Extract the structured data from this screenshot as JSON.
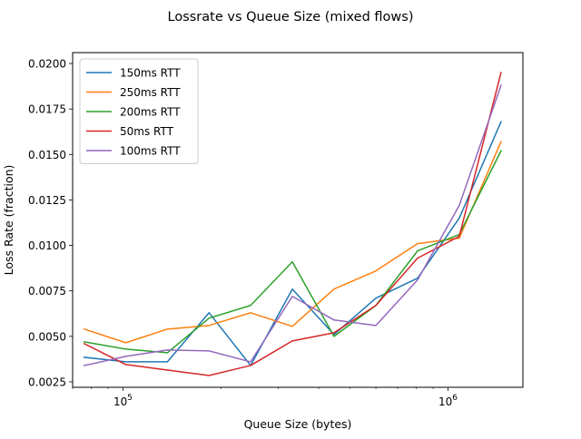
{
  "chart_data": {
    "type": "line",
    "title": "Lossrate vs Queue Size (mixed flows)",
    "xlabel": "Queue Size (bytes)",
    "ylabel": "Loss Rate (fraction)",
    "x_scale": "log",
    "xlim": [
      70000,
      1700000
    ],
    "ylim": [
      0.0022,
      0.0206
    ],
    "x_ticks": [
      {
        "value": 100000,
        "label_base": "10",
        "label_exp": "5"
      },
      {
        "value": 1000000,
        "label_base": "10",
        "label_exp": "6"
      }
    ],
    "y_ticks": [
      {
        "value": 0.0025,
        "label": "0.0025"
      },
      {
        "value": 0.005,
        "label": "0.0050"
      },
      {
        "value": 0.0075,
        "label": "0.0075"
      },
      {
        "value": 0.01,
        "label": "0.0100"
      },
      {
        "value": 0.0125,
        "label": "0.0125"
      },
      {
        "value": 0.015,
        "label": "0.0150"
      },
      {
        "value": 0.0175,
        "label": "0.0175"
      },
      {
        "value": 0.02,
        "label": "0.0200"
      }
    ],
    "grid": false,
    "legend_position": "top-left",
    "x": [
      76000,
      102000,
      137000,
      184000,
      247000,
      332000,
      446000,
      600000,
      806000,
      1083000,
      1456000
    ],
    "series": [
      {
        "name": "150ms RTT",
        "color": "#1f77b4",
        "values": [
          0.00385,
          0.0036,
          0.0036,
          0.0063,
          0.0034,
          0.0076,
          0.0051,
          0.0071,
          0.0082,
          0.0115,
          0.0168
        ]
      },
      {
        "name": "250ms RTT",
        "color": "#ff7f0e",
        "values": [
          0.0054,
          0.00465,
          0.0054,
          0.0056,
          0.0063,
          0.00555,
          0.0076,
          0.0086,
          0.0101,
          0.0104,
          0.0157
        ]
      },
      {
        "name": "200ms RTT",
        "color": "#2ca02c",
        "values": [
          0.0047,
          0.0043,
          0.0041,
          0.006,
          0.0067,
          0.0091,
          0.005,
          0.0067,
          0.0097,
          0.0106,
          0.0152
        ]
      },
      {
        "name": "50ms RTT",
        "color": "#d62728",
        "values": [
          0.0046,
          0.00345,
          0.00315,
          0.00285,
          0.0034,
          0.00475,
          0.0052,
          0.0067,
          0.0093,
          0.0105,
          0.0195
        ]
      },
      {
        "name": "100ms RTT",
        "color": "#9467bd",
        "values": [
          0.0034,
          0.0039,
          0.00425,
          0.0042,
          0.0036,
          0.0072,
          0.0059,
          0.0056,
          0.0081,
          0.0122,
          0.0188
        ]
      }
    ]
  }
}
